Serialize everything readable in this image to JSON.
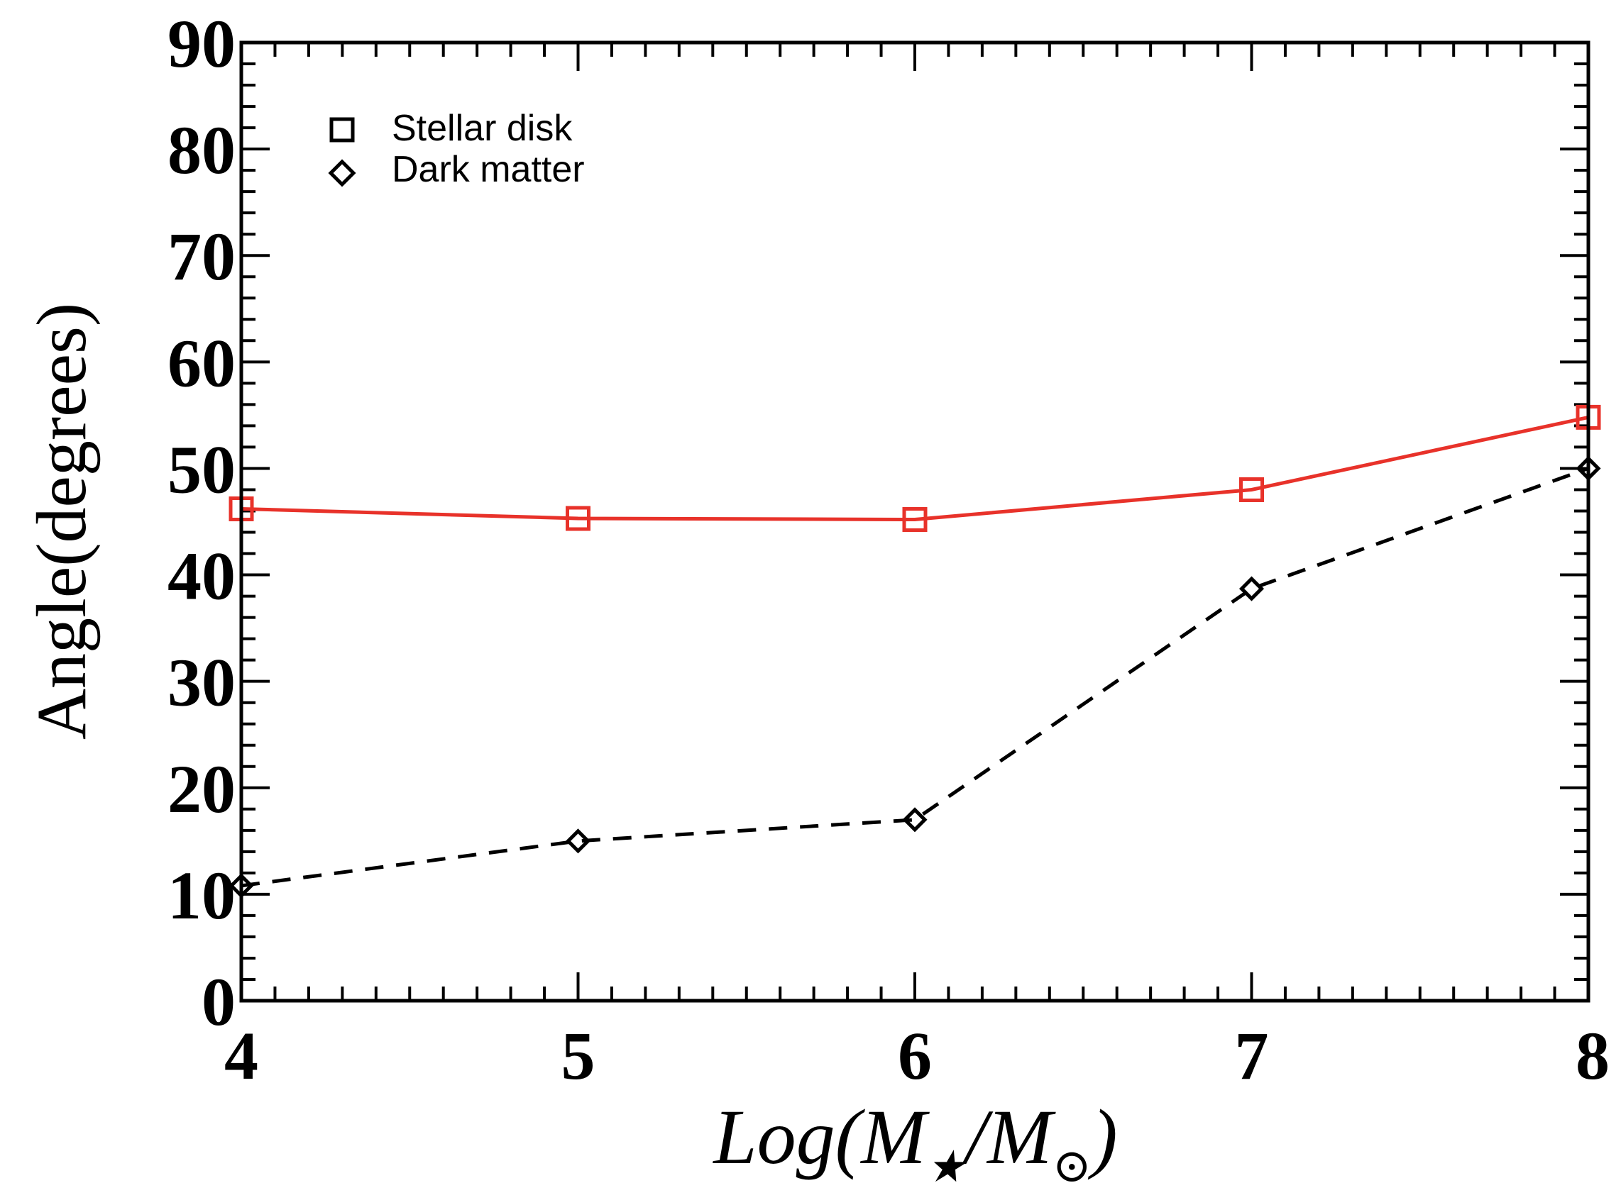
{
  "chart_data": {
    "type": "line",
    "title": "",
    "xlabel_parts": {
      "main": "Log(M",
      "star": "★",
      "slash": "/M",
      "sun": "⊙",
      "close": ")"
    },
    "ylabel": "Angle(degrees)",
    "xlim": [
      4,
      8
    ],
    "ylim": [
      0,
      90
    ],
    "x_ticks": [
      "4",
      "5",
      "6",
      "7",
      "8"
    ],
    "y_ticks": [
      "0",
      "10",
      "20",
      "30",
      "40",
      "50",
      "60",
      "70",
      "80",
      "90"
    ],
    "x": [
      4,
      5,
      6,
      7,
      8
    ],
    "series": [
      {
        "name": "Stellar disk",
        "marker": "square",
        "color": "#e8322a",
        "dash": "solid",
        "values": [
          46.2,
          45.3,
          45.2,
          48.0,
          54.8
        ]
      },
      {
        "name": "Dark matter",
        "marker": "diamond",
        "color": "#000000",
        "dash": "dashed",
        "values": [
          10.8,
          15.0,
          17.0,
          38.7,
          50.0
        ]
      }
    ],
    "legend_position": "top-left"
  }
}
